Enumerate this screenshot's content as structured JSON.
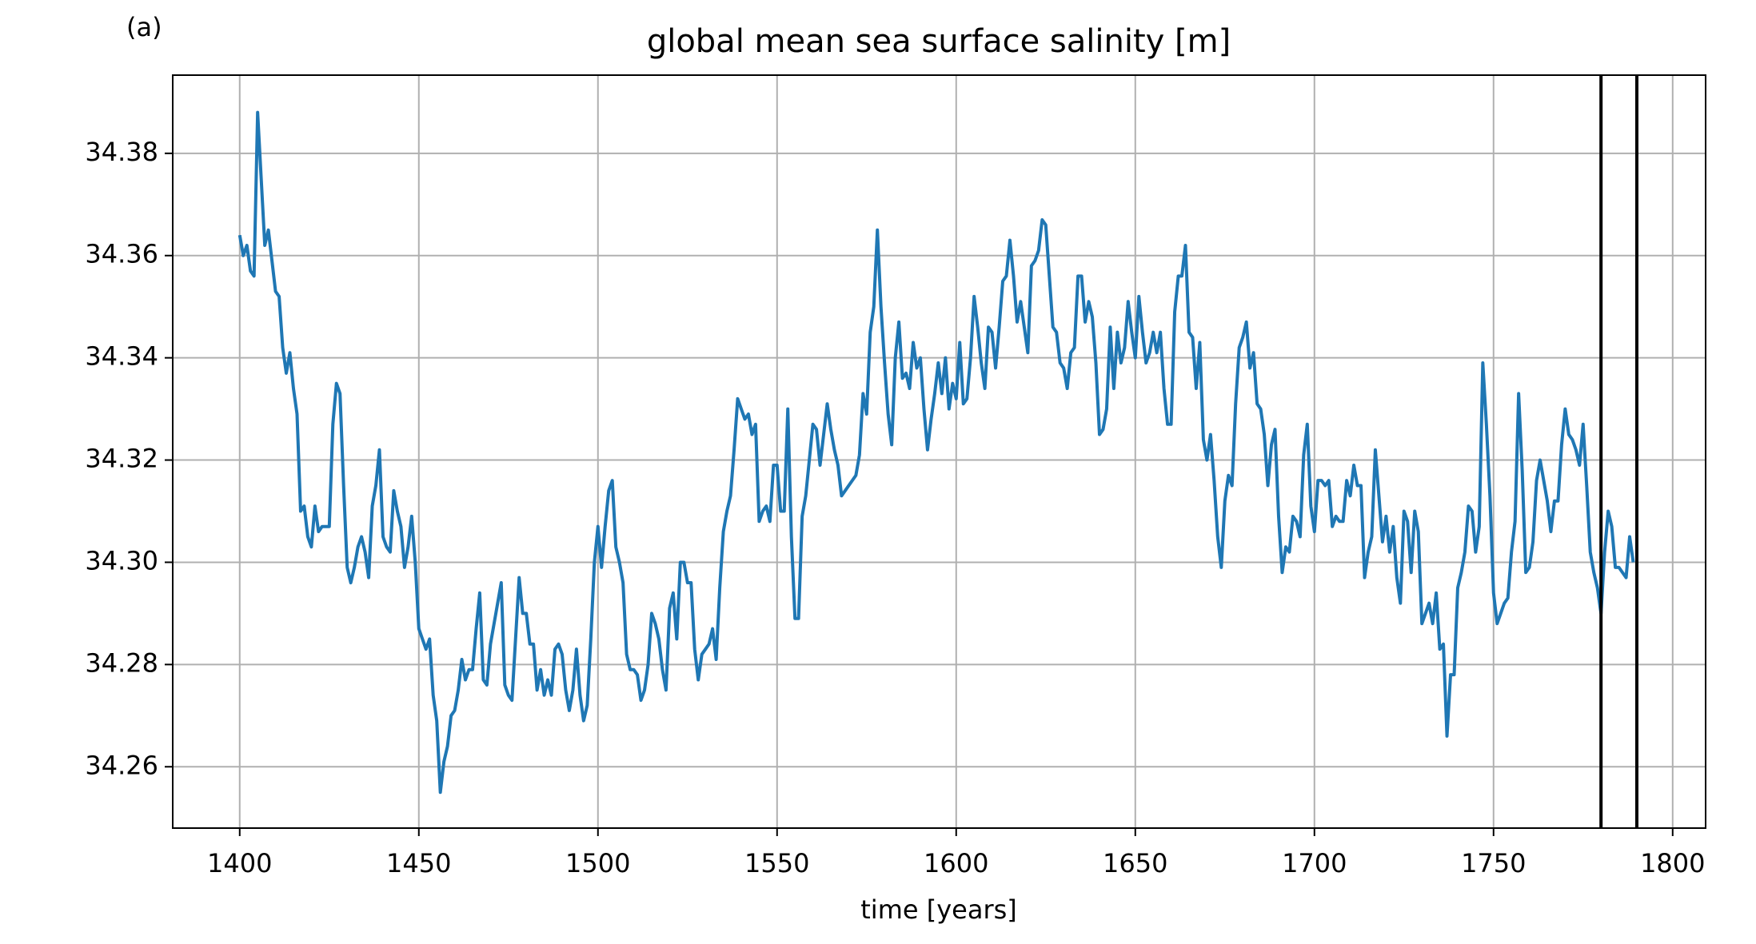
{
  "chart_data": {
    "type": "line",
    "title": "global mean sea surface salinity [m]",
    "panel_label": "(a)",
    "xlabel": "time [years]",
    "color": "#1f77b4",
    "vline_color": "#000000",
    "vlines": [
      1780,
      1790
    ],
    "grid": true,
    "xlim": [
      1381.3,
      1809.2
    ],
    "ylim": [
      34.248,
      34.3953
    ],
    "xticks": [
      1400,
      1450,
      1500,
      1550,
      1600,
      1650,
      1700,
      1750,
      1800
    ],
    "yticks": [
      34.26,
      34.28,
      {
        "value": 34.3,
        "label": "34.30"
      },
      34.32,
      34.34,
      34.36,
      34.38
    ],
    "x": [
      1400,
      1401,
      1402,
      1403,
      1404,
      1405,
      1406,
      1407,
      1408,
      1409,
      1410,
      1411,
      1412,
      1413,
      1414,
      1415,
      1416,
      1417,
      1418,
      1419,
      1420,
      1421,
      1422,
      1423,
      1424,
      1425,
      1426,
      1427,
      1428,
      1429,
      1430,
      1431,
      1432,
      1433,
      1434,
      1435,
      1436,
      1437,
      1438,
      1439,
      1440,
      1441,
      1442,
      1443,
      1444,
      1445,
      1446,
      1447,
      1448,
      1449,
      1450,
      1451,
      1452,
      1453,
      1454,
      1455,
      1456,
      1457,
      1458,
      1459,
      1460,
      1461,
      1462,
      1463,
      1464,
      1465,
      1466,
      1467,
      1468,
      1469,
      1470,
      1471,
      1472,
      1473,
      1474,
      1475,
      1476,
      1477,
      1478,
      1479,
      1480,
      1481,
      1482,
      1483,
      1484,
      1485,
      1486,
      1487,
      1488,
      1489,
      1490,
      1491,
      1492,
      1493,
      1494,
      1495,
      1496,
      1497,
      1498,
      1499,
      1500,
      1501,
      1502,
      1503,
      1504,
      1505,
      1506,
      1507,
      1508,
      1509,
      1510,
      1511,
      1512,
      1513,
      1514,
      1515,
      1516,
      1517,
      1518,
      1519,
      1520,
      1521,
      1522,
      1523,
      1524,
      1525,
      1526,
      1527,
      1528,
      1529,
      1530,
      1531,
      1532,
      1533,
      1534,
      1535,
      1536,
      1537,
      1538,
      1539,
      1540,
      1541,
      1542,
      1543,
      1544,
      1545,
      1546,
      1547,
      1548,
      1549,
      1550,
      1551,
      1552,
      1553,
      1554,
      1555,
      1556,
      1557,
      1558,
      1559,
      1560,
      1561,
      1562,
      1563,
      1564,
      1565,
      1566,
      1567,
      1568,
      1569,
      1570,
      1571,
      1572,
      1573,
      1574,
      1575,
      1576,
      1577,
      1578,
      1579,
      1580,
      1581,
      1582,
      1583,
      1584,
      1585,
      1586,
      1587,
      1588,
      1589,
      1590,
      1591,
      1592,
      1593,
      1594,
      1595,
      1596,
      1597,
      1598,
      1599,
      1600,
      1601,
      1602,
      1603,
      1604,
      1605,
      1606,
      1607,
      1608,
      1609,
      1610,
      1611,
      1612,
      1613,
      1614,
      1615,
      1616,
      1617,
      1618,
      1619,
      1620,
      1621,
      1622,
      1623,
      1624,
      1625,
      1626,
      1627,
      1628,
      1629,
      1630,
      1631,
      1632,
      1633,
      1634,
      1635,
      1636,
      1637,
      1638,
      1639,
      1640,
      1641,
      1642,
      1643,
      1644,
      1645,
      1646,
      1647,
      1648,
      1649,
      1650,
      1651,
      1652,
      1653,
      1654,
      1655,
      1656,
      1657,
      1658,
      1659,
      1660,
      1661,
      1662,
      1663,
      1664,
      1665,
      1666,
      1667,
      1668,
      1669,
      1670,
      1671,
      1672,
      1673,
      1674,
      1675,
      1676,
      1677,
      1678,
      1679,
      1680,
      1681,
      1682,
      1683,
      1684,
      1685,
      1686,
      1687,
      1688,
      1689,
      1690,
      1691,
      1692,
      1693,
      1694,
      1695,
      1696,
      1697,
      1698,
      1699,
      1700,
      1701,
      1702,
      1703,
      1704,
      1705,
      1706,
      1707,
      1708,
      1709,
      1710,
      1711,
      1712,
      1713,
      1714,
      1715,
      1716,
      1717,
      1718,
      1719,
      1720,
      1721,
      1722,
      1723,
      1724,
      1725,
      1726,
      1727,
      1728,
      1729,
      1730,
      1731,
      1732,
      1733,
      1734,
      1735,
      1736,
      1737,
      1738,
      1739,
      1740,
      1741,
      1742,
      1743,
      1744,
      1745,
      1746,
      1747,
      1748,
      1749,
      1750,
      1751,
      1752,
      1753,
      1754,
      1755,
      1756,
      1757,
      1758,
      1759,
      1760,
      1761,
      1762,
      1763,
      1764,
      1765,
      1766,
      1767,
      1768,
      1769,
      1770,
      1771,
      1772,
      1773,
      1774,
      1775,
      1776,
      1777,
      1778,
      1779,
      1780,
      1781,
      1782,
      1783,
      1784,
      1785,
      1786,
      1787,
      1788,
      1789
    ],
    "values": [
      34.364,
      34.36,
      34.362,
      34.357,
      34.356,
      34.388,
      34.375,
      34.362,
      34.365,
      34.359,
      34.353,
      34.352,
      34.342,
      34.337,
      34.341,
      34.334,
      34.329,
      34.31,
      34.311,
      34.305,
      34.303,
      34.311,
      34.306,
      34.307,
      34.307,
      34.307,
      34.327,
      34.335,
      34.333,
      34.315,
      34.299,
      34.296,
      34.299,
      34.303,
      34.305,
      34.302,
      34.297,
      34.311,
      34.315,
      34.322,
      34.305,
      34.303,
      34.302,
      34.314,
      34.31,
      34.307,
      34.299,
      34.303,
      34.309,
      34.3,
      34.287,
      34.285,
      34.283,
      34.285,
      34.274,
      34.269,
      34.255,
      34.261,
      34.264,
      34.27,
      34.271,
      34.275,
      34.281,
      34.277,
      34.279,
      34.279,
      34.287,
      34.294,
      34.277,
      34.276,
      34.284,
      34.288,
      34.292,
      34.296,
      34.276,
      34.274,
      34.273,
      34.285,
      34.297,
      34.29,
      34.29,
      34.284,
      34.284,
      34.275,
      34.279,
      34.274,
      34.277,
      34.274,
      34.283,
      34.284,
      34.282,
      34.275,
      34.271,
      34.275,
      34.283,
      34.274,
      34.269,
      34.272,
      34.285,
      34.3,
      34.307,
      34.299,
      34.307,
      34.314,
      34.316,
      34.303,
      34.3,
      34.296,
      34.282,
      34.279,
      34.279,
      34.278,
      34.273,
      34.275,
      34.28,
      34.29,
      34.288,
      34.285,
      34.279,
      34.275,
      34.291,
      34.294,
      34.285,
      34.3,
      34.3,
      34.296,
      34.296,
      34.283,
      34.277,
      34.282,
      34.283,
      34.284,
      34.287,
      34.281,
      34.295,
      34.306,
      34.31,
      34.313,
      34.322,
      34.332,
      34.33,
      34.328,
      34.329,
      34.325,
      34.327,
      34.308,
      34.31,
      34.311,
      34.308,
      34.319,
      34.319,
      34.31,
      34.31,
      34.33,
      34.305,
      34.289,
      34.289,
      34.309,
      34.313,
      34.32,
      34.327,
      34.326,
      34.319,
      34.325,
      34.331,
      34.326,
      34.322,
      34.319,
      34.313,
      34.314,
      34.315,
      34.316,
      34.317,
      34.321,
      34.333,
      34.329,
      34.345,
      34.35,
      34.365,
      34.35,
      34.339,
      34.329,
      34.323,
      34.34,
      34.347,
      34.336,
      34.337,
      34.334,
      34.343,
      34.338,
      34.34,
      34.33,
      34.322,
      34.328,
      34.333,
      34.339,
      34.333,
      34.34,
      34.33,
      34.335,
      34.332,
      34.343,
      34.331,
      34.332,
      34.34,
      34.352,
      34.346,
      34.339,
      34.334,
      34.346,
      34.345,
      34.338,
      34.346,
      34.355,
      34.356,
      34.363,
      34.356,
      34.347,
      34.351,
      34.346,
      34.341,
      34.358,
      34.359,
      34.361,
      34.367,
      34.366,
      34.356,
      34.346,
      34.345,
      34.339,
      34.338,
      34.334,
      34.341,
      34.342,
      34.356,
      34.356,
      34.347,
      34.351,
      34.348,
      34.339,
      34.325,
      34.326,
      34.33,
      34.346,
      34.334,
      34.345,
      34.339,
      34.342,
      34.351,
      34.345,
      34.34,
      34.352,
      34.345,
      34.339,
      34.341,
      34.345,
      34.341,
      34.345,
      34.334,
      34.327,
      34.327,
      34.349,
      34.356,
      34.356,
      34.362,
      34.345,
      34.344,
      34.334,
      34.343,
      34.324,
      34.32,
      34.325,
      34.316,
      34.305,
      34.299,
      34.312,
      34.317,
      34.315,
      34.331,
      34.342,
      34.344,
      34.347,
      34.338,
      34.341,
      34.331,
      34.33,
      34.325,
      34.315,
      34.323,
      34.326,
      34.309,
      34.298,
      34.303,
      34.302,
      34.309,
      34.308,
      34.305,
      34.321,
      34.327,
      34.311,
      34.306,
      34.316,
      34.316,
      34.315,
      34.316,
      34.307,
      34.309,
      34.308,
      34.308,
      34.316,
      34.313,
      34.319,
      34.315,
      34.315,
      34.297,
      34.302,
      34.305,
      34.322,
      34.313,
      34.304,
      34.309,
      34.302,
      34.307,
      34.297,
      34.292,
      34.31,
      34.308,
      34.298,
      34.31,
      34.306,
      34.288,
      34.29,
      34.292,
      34.288,
      34.294,
      34.283,
      34.284,
      34.266,
      34.278,
      34.278,
      34.295,
      34.298,
      34.302,
      34.311,
      34.31,
      34.302,
      34.307,
      34.339,
      34.327,
      34.313,
      34.294,
      34.288,
      34.29,
      34.292,
      34.293,
      34.302,
      34.308,
      34.333,
      34.318,
      34.298,
      34.299,
      34.304,
      34.316,
      34.32,
      34.316,
      34.312,
      34.306,
      34.312,
      34.312,
      34.323,
      34.33,
      34.325,
      34.324,
      34.322,
      34.319,
      34.327,
      34.315,
      34.302,
      34.298,
      34.295,
      34.29,
      34.302,
      34.31,
      34.307,
      34.299,
      34.299,
      34.298,
      34.297,
      34.305,
      34.3
    ]
  }
}
